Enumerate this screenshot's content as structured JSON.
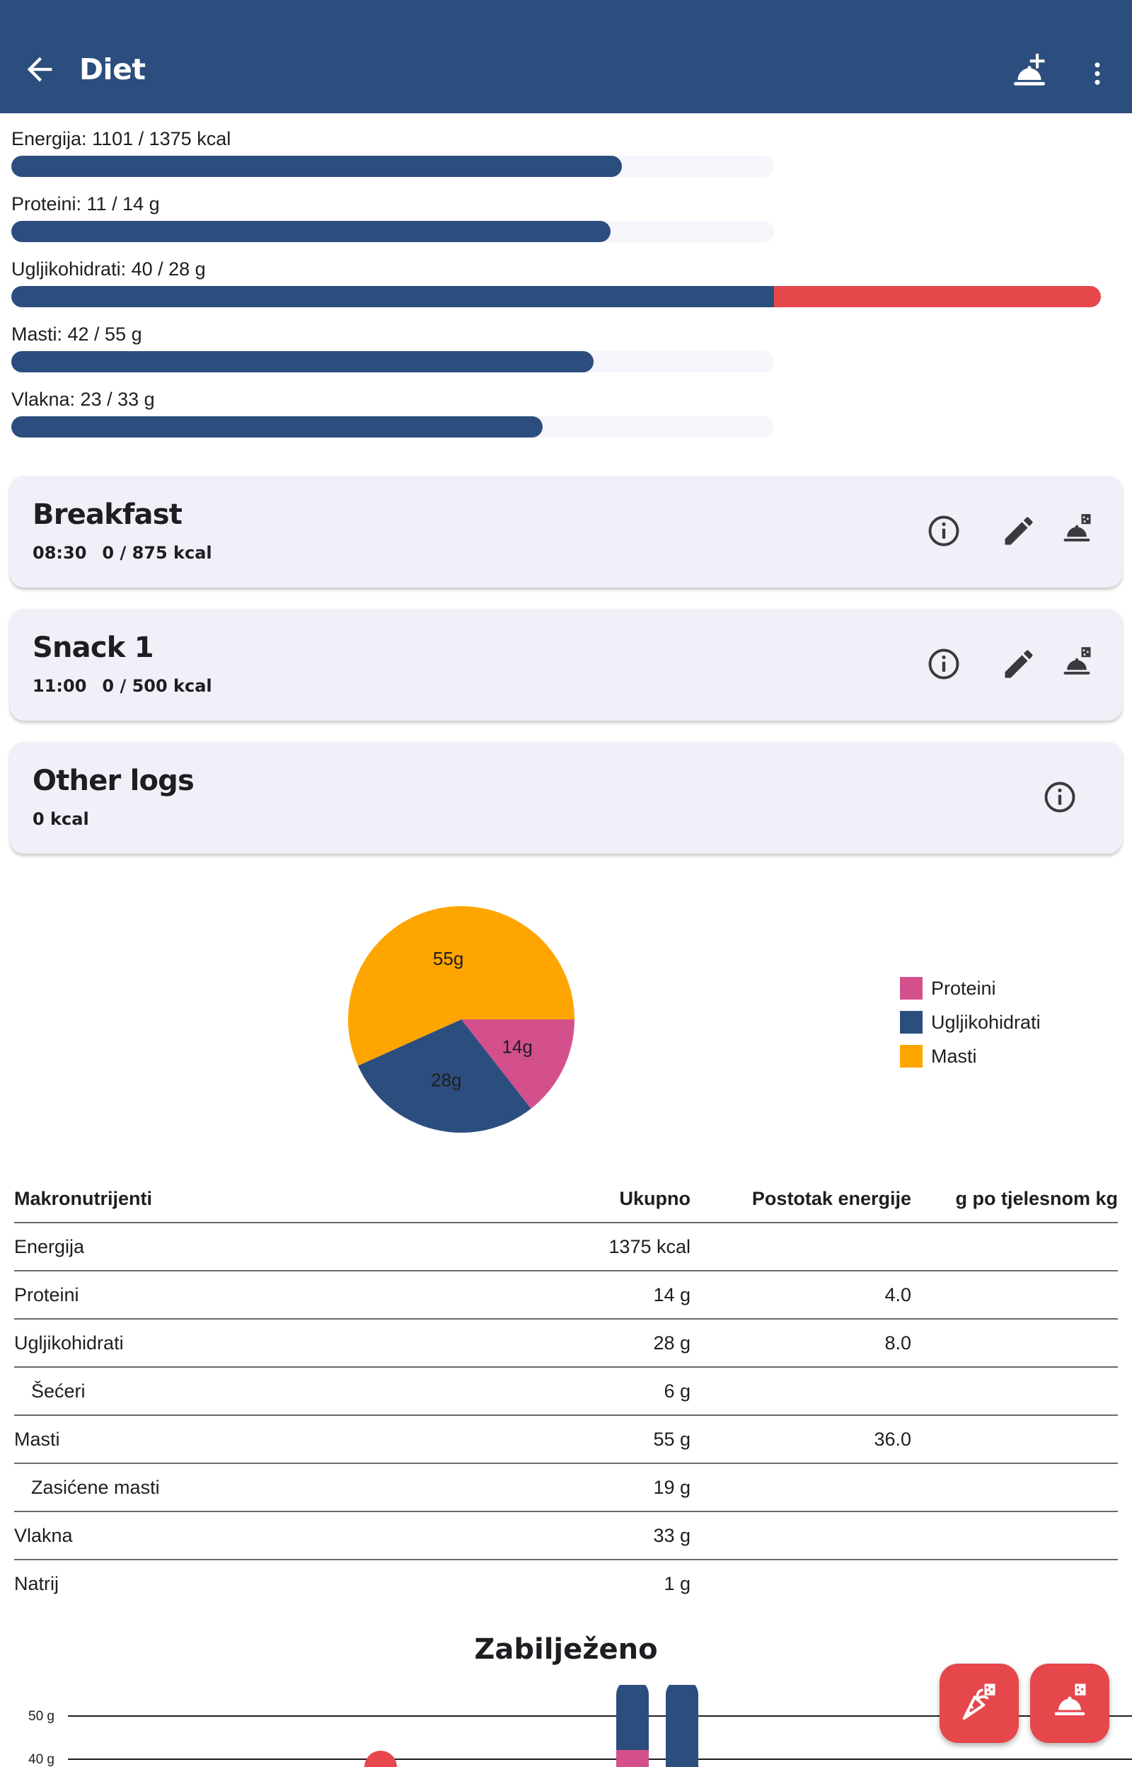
{
  "appbar": {
    "title": "Diet",
    "back_icon": "arrow-back-icon",
    "add_meal_icon": "add-meal-icon",
    "more_icon": "more-vert-icon"
  },
  "colors": {
    "primary": "#2c4e7e",
    "over": "#e5474b",
    "protein": "#d4508c",
    "carbs": "#2c4e7e",
    "fat": "#ffa500"
  },
  "goals": [
    {
      "label": "Energija: 1101 / 1375 kcal",
      "value": 1101,
      "target": 1375
    },
    {
      "label": "Proteini: 11 / 14 g",
      "value": 11,
      "target": 14
    },
    {
      "label": "Ugljikohidrati: 40 / 28 g",
      "value": 40,
      "target": 28
    },
    {
      "label": "Masti: 42 / 55 g",
      "value": 42,
      "target": 55
    },
    {
      "label": "Vlakna: 23 / 33 g",
      "value": 23,
      "target": 33
    }
  ],
  "meals": [
    {
      "name": "Breakfast",
      "time": "08:30",
      "kcal": "0 / 875 kcal"
    },
    {
      "name": "Snack 1",
      "time": "11:00",
      "kcal": "0 / 500 kcal"
    }
  ],
  "other_logs": {
    "name": "Other logs",
    "kcal": "0 kcal"
  },
  "chart_data": [
    {
      "type": "pie",
      "categories": [
        "Proteini",
        "Ugljikohidrati",
        "Masti"
      ],
      "values": [
        14,
        28,
        55
      ],
      "labels": [
        "14g",
        "28g",
        "55g"
      ],
      "colors": [
        "#d4508c",
        "#2c4e7e",
        "#ffa500"
      ],
      "legend": "right"
    }
  ],
  "table": {
    "headers": [
      "Makronutrijenti",
      "Ukupno",
      "Postotak energije",
      "g po tjelesnom kg"
    ],
    "rows": [
      {
        "name": "Energija",
        "total": "1375 kcal",
        "pct": "",
        "perkg": "",
        "indent": false
      },
      {
        "name": "Proteini",
        "total": "14 g",
        "pct": "4.0",
        "perkg": "",
        "indent": false
      },
      {
        "name": "Ugljikohidrati",
        "total": "28 g",
        "pct": "8.0",
        "perkg": "",
        "indent": false
      },
      {
        "name": "Šećeri",
        "total": "6 g",
        "pct": "",
        "perkg": "",
        "indent": true
      },
      {
        "name": "Masti",
        "total": "55 g",
        "pct": "36.0",
        "perkg": "",
        "indent": false
      },
      {
        "name": "Zasićene masti",
        "total": "19 g",
        "pct": "",
        "perkg": "",
        "indent": true
      },
      {
        "name": "Vlakna",
        "total": "33 g",
        "pct": "",
        "perkg": "",
        "indent": false
      },
      {
        "name": "Natrij",
        "total": "1 g",
        "pct": "",
        "perkg": "",
        "indent": false
      }
    ]
  },
  "logged": {
    "title": "Zabilježeno",
    "y_ticks": [
      "50 g",
      "40 g"
    ]
  },
  "fabs": {
    "log_food_icon": "log-food-icon",
    "log_meal_icon": "log-meal-icon"
  }
}
